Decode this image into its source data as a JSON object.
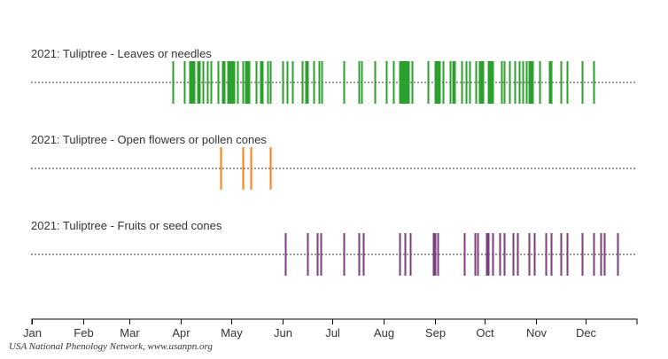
{
  "chart_data": {
    "type": "scatter",
    "subtype": "event-timeline",
    "year": 2021,
    "xlabel": "",
    "ylabel": "",
    "x_unit": "day-of-year",
    "xlim": [
      0,
      365
    ],
    "month_ticks": [
      {
        "label": "Jan",
        "day": 0
      },
      {
        "label": "Feb",
        "day": 31
      },
      {
        "label": "Mar",
        "day": 59
      },
      {
        "label": "Apr",
        "day": 90
      },
      {
        "label": "May",
        "day": 120
      },
      {
        "label": "Jun",
        "day": 151
      },
      {
        "label": "Jul",
        "day": 181
      },
      {
        "label": "Aug",
        "day": 212
      },
      {
        "label": "Sep",
        "day": 243
      },
      {
        "label": "Oct",
        "day": 273
      },
      {
        "label": "Nov",
        "day": 304
      },
      {
        "label": "Dec",
        "day": 334
      }
    ],
    "grid": false,
    "series": [
      {
        "name": "2021: Tuliptree - Leaves or needles",
        "color": "#2ca02c",
        "days": [
          85,
          92,
          95,
          96,
          97,
          98,
          100,
          101,
          103,
          106,
          108,
          112,
          115,
          116,
          118,
          119,
          120,
          121,
          122,
          124,
          127,
          129,
          130,
          131,
          135,
          138,
          139,
          142,
          144,
          151,
          154,
          157,
          163,
          165,
          166,
          170,
          173,
          175,
          188,
          197,
          199,
          207,
          214,
          218,
          222,
          223,
          224,
          225,
          226,
          227,
          229,
          239,
          243,
          244,
          245,
          246,
          248,
          252,
          254,
          255,
          259,
          262,
          264,
          268,
          270,
          271,
          272,
          275,
          276,
          277,
          278,
          283,
          285,
          288,
          291,
          294,
          296,
          298,
          300,
          301,
          302,
          306,
          312,
          313,
          319,
          323,
          332,
          339
        ]
      },
      {
        "name": "2021: Tuliptree - Open flowers or pollen cones",
        "color": "#ff7f0e",
        "days": [
          114,
          127,
          132,
          144
        ]
      },
      {
        "name": "2021: Tuliptree - Fruits or seed cones",
        "color": "#7b3f7b",
        "days": [
          153,
          166,
          172,
          174,
          188,
          197,
          200,
          222,
          225,
          228,
          242,
          243,
          245,
          261,
          267,
          269,
          274,
          275,
          278,
          282,
          285,
          290,
          293,
          300,
          303,
          310,
          313,
          319,
          323,
          332,
          339,
          343,
          345,
          353
        ]
      }
    ]
  },
  "credit": "USA National Phenology Network, www.usanpn.org"
}
